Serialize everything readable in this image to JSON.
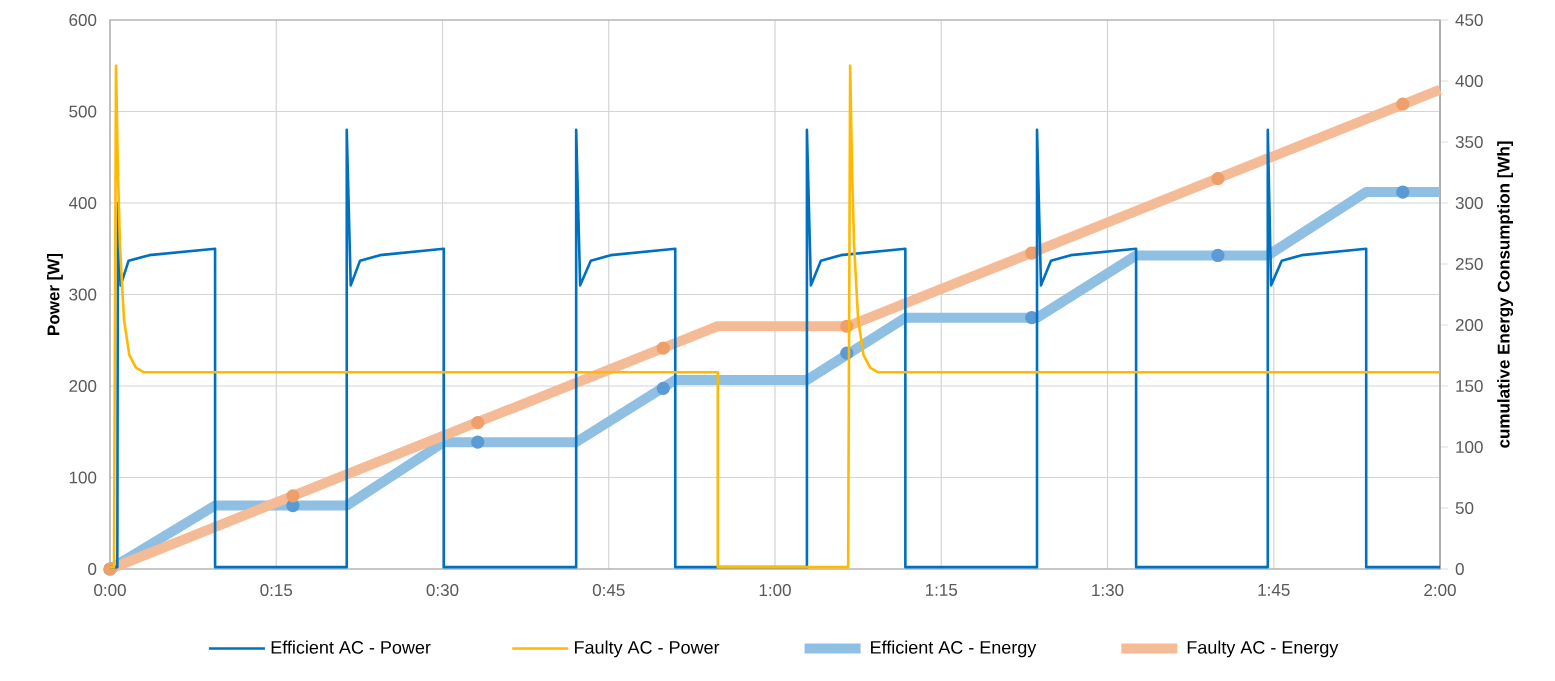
{
  "chart_data": {
    "type": "line",
    "ylabel": "Power [W]",
    "y2label": "cumulative Energy Consumption [Wh]",
    "xlim": [
      0,
      2
    ],
    "ylim": [
      0,
      600
    ],
    "y2lim": [
      0,
      450
    ],
    "xticks": [
      {
        "value": 0,
        "label": "0:00"
      },
      {
        "value": 0.25,
        "label": "0:15"
      },
      {
        "value": 0.5,
        "label": "0:30"
      },
      {
        "value": 0.75,
        "label": "0:45"
      },
      {
        "value": 1,
        "label": "1:00"
      },
      {
        "value": 1.25,
        "label": "1:15"
      },
      {
        "value": 1.5,
        "label": "1:30"
      },
      {
        "value": 1.75,
        "label": "1:45"
      },
      {
        "value": 2,
        "label": "2:00"
      }
    ],
    "yticks": [
      0,
      100,
      200,
      300,
      400,
      500,
      600
    ],
    "y2ticks": [
      0,
      50,
      100,
      150,
      200,
      250,
      300,
      350,
      400,
      450
    ],
    "grid": true,
    "legend": "bottom",
    "series": [
      {
        "name": "Efficient AC - Power",
        "color": "#0070c0",
        "x": [
          0,
          0.011,
          0.012,
          0.016,
          0.028,
          0.059,
          0.158,
          0.158,
          0.356,
          0.356,
          0.362,
          0.376,
          0.406,
          0.502,
          0.502,
          0.701,
          0.701,
          0.707,
          0.723,
          0.753,
          0.85,
          0.85,
          1.048,
          1.048,
          1.054,
          1.069,
          1.099,
          1.196,
          1.196,
          1.394,
          1.394,
          1.4,
          1.415,
          1.445,
          1.543,
          1.543,
          1.741,
          1.741,
          1.746,
          1.762,
          1.792,
          1.889,
          1.889,
          2
        ],
        "values": [
          2,
          2,
          400,
          310,
          337,
          343,
          350,
          2,
          2,
          480,
          310,
          337,
          343,
          350,
          2,
          2,
          480,
          310,
          337,
          343,
          350,
          2,
          2,
          480,
          310,
          337,
          343,
          350,
          2,
          2,
          480,
          310,
          337,
          343,
          350,
          2,
          2,
          480,
          310,
          337,
          343,
          350,
          2,
          2
        ]
      },
      {
        "name": "Faulty AC - Power",
        "color": "#ffb900",
        "x": [
          0,
          0.006,
          0.009,
          0.012,
          0.015,
          0.021,
          0.029,
          0.039,
          0.051,
          0.914,
          0.914,
          1.11,
          1.113,
          1.116,
          1.119,
          1.125,
          1.133,
          1.143,
          1.155,
          2
        ],
        "values": [
          2,
          2,
          550,
          432,
          353,
          273,
          234,
          220,
          215,
          215,
          2,
          2,
          550,
          432,
          353,
          273,
          234,
          220,
          215,
          215
        ]
      },
      {
        "name": "Efficient AC - Energy",
        "color": "#8fbfe2",
        "axis": "y2",
        "x": [
          0,
          0.158,
          0.356,
          0.502,
          0.701,
          0.85,
          1.048,
          1.196,
          1.394,
          1.543,
          1.741,
          1.889,
          2
        ],
        "values": [
          0,
          52,
          52,
          104,
          104,
          155,
          155,
          206,
          206,
          257,
          257,
          309,
          309
        ]
      },
      {
        "name": "Faulty AC - Energy",
        "color": "#f4bb96",
        "axis": "y2",
        "x": [
          0,
          0.914,
          1.11,
          2
        ],
        "values": [
          0,
          199,
          199,
          393
        ]
      },
      {
        "type": "scatter",
        "color": "#5b9bd5",
        "axis": "y2",
        "x": [
          0,
          0.275,
          0.553,
          0.832,
          1.108,
          1.386,
          1.666,
          1.944
        ],
        "values": [
          0,
          52,
          104,
          148,
          177,
          206,
          257,
          309
        ]
      },
      {
        "type": "scatter",
        "color": "#ee9f6a",
        "axis": "y2",
        "x": [
          0,
          0.275,
          0.553,
          0.832,
          1.108,
          1.386,
          1.666,
          1.944
        ],
        "values": [
          0,
          60,
          120,
          181,
          199,
          259,
          320,
          381
        ]
      }
    ]
  }
}
